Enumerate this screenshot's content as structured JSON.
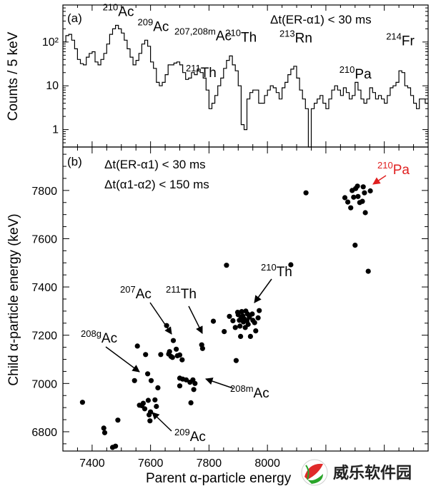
{
  "figure": {
    "panel_a": {
      "label": "(a)",
      "condition": "Δt(ER-α1) < 30 ms",
      "ylabel": "Counts / 5 keV",
      "yticks": [
        "10²",
        "10",
        "1"
      ],
      "peaks": [
        {
          "sup": "210",
          "name": "Ac",
          "x": 7480,
          "y": 230
        },
        {
          "sup": "209",
          "name": "Ac",
          "x": 7590,
          "y": 105
        },
        {
          "sup": "207,208m",
          "name": "Ac",
          "x": 7755,
          "y": 48
        },
        {
          "sup": "211",
          "name": "Th",
          "x": 7750,
          "y": 13
        },
        {
          "sup": "210",
          "name": "Th",
          "x": 7900,
          "y": 52
        },
        {
          "sup": "213",
          "name": "Rn",
          "x": 8090,
          "y": 50
        },
        {
          "sup": "210",
          "name": "Pa",
          "x": 8290,
          "y": 10
        },
        {
          "sup": "214",
          "name": "Fr",
          "x": 8460,
          "y": 50
        }
      ]
    },
    "panel_b": {
      "label": "(b)",
      "condition1": "Δt(ER-α1) < 30 ms",
      "condition2": "Δt(α1-α2) < 150 ms",
      "xlabel": "Parent α-particle energy (keV)",
      "ylabel": "Child α-particle energy (keV)",
      "xticks": [
        "7400",
        "7600",
        "7800",
        "8000",
        "8200",
        "8400"
      ],
      "yticks": [
        "6800",
        "7000",
        "7200",
        "7400",
        "7600",
        "7800"
      ],
      "annotations": [
        {
          "sup": "210",
          "name": "Pa",
          "color": "#e02020"
        },
        {
          "sup": "210",
          "name": "Th",
          "color": "#000000"
        },
        {
          "sup": "207",
          "name": "Ac",
          "color": "#000000"
        },
        {
          "sup": "211",
          "name": "Th",
          "color": "#000000"
        },
        {
          "sup": "208g",
          "name": "Ac",
          "color": "#000000"
        },
        {
          "sup": "208m",
          "name": "Ac",
          "color": "#000000"
        },
        {
          "sup": "209",
          "name": "Ac",
          "color": "#000000"
        }
      ]
    }
  },
  "watermark": {
    "text": "威乐软件园"
  },
  "chart_data": [
    {
      "type": "line",
      "step": true,
      "ylog": true,
      "xlim": [
        7300,
        8550
      ],
      "ylim": [
        0.4,
        700
      ],
      "x": [
        7300,
        7310,
        7320,
        7330,
        7340,
        7350,
        7360,
        7370,
        7380,
        7390,
        7400,
        7410,
        7420,
        7430,
        7440,
        7450,
        7460,
        7470,
        7480,
        7490,
        7500,
        7510,
        7520,
        7530,
        7540,
        7550,
        7560,
        7570,
        7580,
        7590,
        7600,
        7610,
        7620,
        7630,
        7640,
        7650,
        7660,
        7670,
        7680,
        7690,
        7700,
        7710,
        7720,
        7730,
        7740,
        7750,
        7760,
        7770,
        7780,
        7790,
        7800,
        7810,
        7820,
        7830,
        7840,
        7850,
        7860,
        7870,
        7880,
        7890,
        7900,
        7910,
        7920,
        7930,
        7940,
        7950,
        7960,
        7970,
        7980,
        7990,
        8000,
        8010,
        8020,
        8030,
        8040,
        8050,
        8060,
        8070,
        8080,
        8090,
        8100,
        8110,
        8120,
        8130,
        8140,
        8150,
        8160,
        8170,
        8180,
        8190,
        8200,
        8210,
        8220,
        8230,
        8240,
        8250,
        8260,
        8270,
        8280,
        8290,
        8300,
        8310,
        8320,
        8330,
        8340,
        8350,
        8360,
        8370,
        8380,
        8390,
        8400,
        8410,
        8420,
        8430,
        8440,
        8450,
        8460,
        8470,
        8480,
        8490,
        8500,
        8510,
        8520,
        8530,
        8540
      ],
      "y": [
        100,
        140,
        150,
        110,
        70,
        40,
        32,
        30,
        45,
        55,
        60,
        35,
        30,
        40,
        55,
        90,
        150,
        200,
        240,
        200,
        160,
        110,
        70,
        45,
        30,
        38,
        55,
        90,
        110,
        80,
        35,
        25,
        12,
        10,
        12,
        18,
        30,
        30,
        33,
        35,
        30,
        20,
        14,
        15,
        20,
        18,
        24,
        20,
        15,
        8,
        3,
        4,
        6,
        10,
        15,
        25,
        38,
        48,
        30,
        22,
        10,
        1.3,
        1,
        5,
        7,
        8,
        8,
        4,
        4,
        6,
        8,
        10,
        9,
        7,
        5,
        9,
        12,
        18,
        24,
        28,
        15,
        8,
        5,
        3,
        0.4,
        3,
        4,
        5,
        6,
        4,
        3,
        5,
        8,
        10,
        8,
        6,
        9,
        7,
        5,
        6,
        12,
        8,
        5,
        4,
        5,
        9,
        7,
        5,
        6,
        5,
        4,
        6,
        9,
        10,
        12,
        22,
        20,
        10,
        9,
        6,
        4,
        3,
        5,
        5,
        4
      ],
      "ylabel": "Counts / 5 keV",
      "annotations": [
        "210Ac",
        "209Ac",
        "207,208mAc",
        "211Th",
        "210Th",
        "213Rn",
        "210Pa",
        "214Fr"
      ],
      "legend_text": "Δt(ER-α1) < 30 ms"
    },
    {
      "type": "scatter",
      "xlim": [
        7300,
        8550
      ],
      "ylim": [
        6720,
        7980
      ],
      "xlabel": "Parent α-particle energy (keV)",
      "ylabel": "Child α-particle energy (keV)",
      "points": [
        [
          7367,
          6922
        ],
        [
          7440,
          6815
        ],
        [
          7443,
          6796
        ],
        [
          7470,
          6735
        ],
        [
          7480,
          6740
        ],
        [
          7488,
          6848
        ],
        [
          7545,
          7012
        ],
        [
          7555,
          7155
        ],
        [
          7562,
          6910
        ],
        [
          7570,
          6908
        ],
        [
          7575,
          6918
        ],
        [
          7580,
          6895
        ],
        [
          7583,
          7120
        ],
        [
          7590,
          7040
        ],
        [
          7592,
          6930
        ],
        [
          7595,
          6870
        ],
        [
          7598,
          6845
        ],
        [
          7600,
          6882
        ],
        [
          7602,
          7012
        ],
        [
          7615,
          6932
        ],
        [
          7620,
          6905
        ],
        [
          7635,
          7120
        ],
        [
          7655,
          7240
        ],
        [
          7662,
          7122
        ],
        [
          7665,
          7132
        ],
        [
          7670,
          7112
        ],
        [
          7675,
          7108
        ],
        [
          7678,
          7178
        ],
        [
          7688,
          7142
        ],
        [
          7692,
          7115
        ],
        [
          7700,
          7118
        ],
        [
          7708,
          7098
        ],
        [
          7625,
          6982
        ],
        [
          7700,
          7022
        ],
        [
          7710,
          7018
        ],
        [
          7722,
          7015
        ],
        [
          7735,
          7005
        ],
        [
          7745,
          7015
        ],
        [
          7752,
          7000
        ],
        [
          7748,
          6975
        ],
        [
          7738,
          6920
        ],
        [
          7700,
          6990
        ],
        [
          7775,
          7160
        ],
        [
          7778,
          7145
        ],
        [
          7815,
          7258
        ],
        [
          7852,
          7215
        ],
        [
          7860,
          7490
        ],
        [
          7870,
          7278
        ],
        [
          7882,
          7260
        ],
        [
          7890,
          7232
        ],
        [
          7893,
          7095
        ],
        [
          7898,
          7295
        ],
        [
          7900,
          7285
        ],
        [
          7904,
          7262
        ],
        [
          7906,
          7238
        ],
        [
          7908,
          7195
        ],
        [
          7910,
          7270
        ],
        [
          7912,
          7298
        ],
        [
          7916,
          7280
        ],
        [
          7918,
          7255
        ],
        [
          7920,
          7268
        ],
        [
          7924,
          7232
        ],
        [
          7926,
          7300
        ],
        [
          7930,
          7260
        ],
        [
          7932,
          7288
        ],
        [
          7934,
          7245
        ],
        [
          7938,
          7275
        ],
        [
          7942,
          7195
        ],
        [
          7948,
          7288
        ],
        [
          7950,
          7262
        ],
        [
          7956,
          7252
        ],
        [
          7960,
          7218
        ],
        [
          7968,
          7272
        ],
        [
          7972,
          7302
        ],
        [
          8080,
          7492
        ],
        [
          8132,
          7790
        ],
        [
          8265,
          7770
        ],
        [
          8275,
          7752
        ],
        [
          8285,
          7728
        ],
        [
          8290,
          7800
        ],
        [
          8295,
          7772
        ],
        [
          8302,
          7808
        ],
        [
          8308,
          7818
        ],
        [
          8310,
          7775
        ],
        [
          8316,
          7750
        ],
        [
          8300,
          7573
        ],
        [
          8325,
          7755
        ],
        [
          8328,
          7815
        ],
        [
          8332,
          7790
        ],
        [
          8335,
          7708
        ],
        [
          8345,
          7465
        ],
        [
          8352,
          7798
        ]
      ],
      "annotations": [
        "210Pa",
        "210Th",
        "207Ac",
        "211Th",
        "208gAc",
        "208mAc",
        "209Ac"
      ],
      "legend_text": [
        "Δt(ER-α1) < 30 ms",
        "Δt(α1-α2) < 150 ms"
      ]
    }
  ]
}
